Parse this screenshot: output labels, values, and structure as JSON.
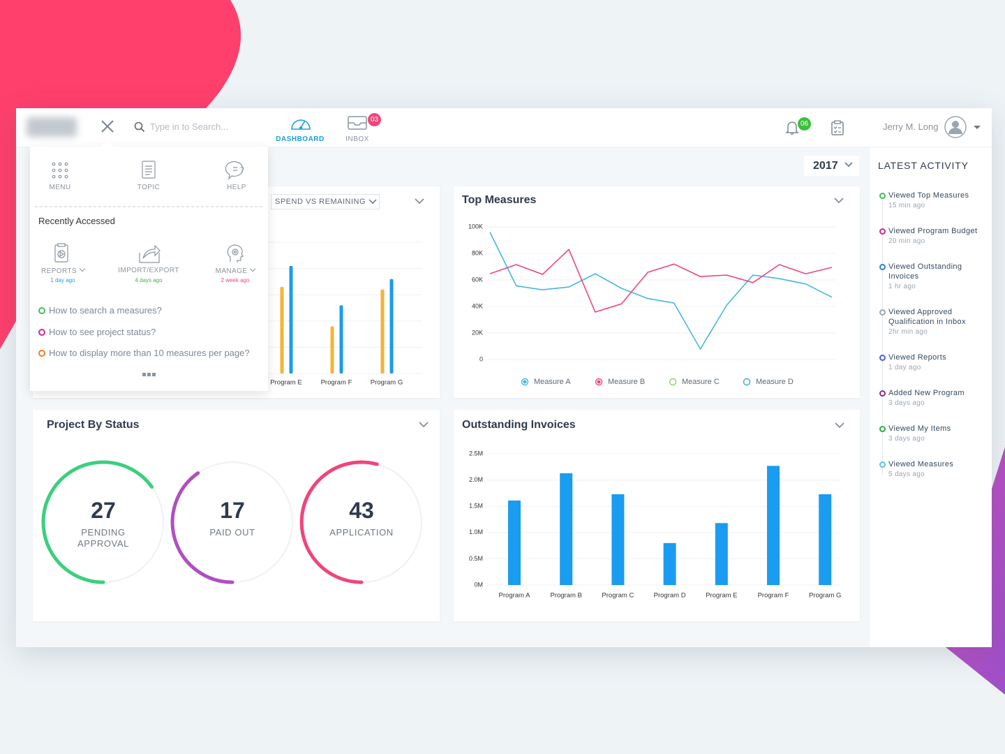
{
  "header": {
    "search_placeholder": "Type in to Search...",
    "nav": [
      {
        "label": "DASHBOARD"
      },
      {
        "label": "INBOX",
        "badge": "03"
      }
    ],
    "notification_badge": "06",
    "user_name": "Jerry M. Long"
  },
  "year_filter": "2017",
  "quick_menu": {
    "items": [
      "MENU",
      "TOPIC",
      "HELP"
    ],
    "recent_title": "Recently Accessed",
    "recent": [
      {
        "label": "REPORTS",
        "time": "1 day ago",
        "color": "#1a9cf0"
      },
      {
        "label": "IMPORT/EXPORT",
        "time": "4 days ago",
        "color": "#4caf50"
      },
      {
        "label": "MANAGE",
        "time": "2 week ago",
        "color": "#f0457a"
      }
    ],
    "questions": [
      {
        "text": "How to search a measures?",
        "color": "#3cbf5a"
      },
      {
        "text": "How to see project status?",
        "color": "#d2259a"
      },
      {
        "text": "How to display more than 10 measures per page?",
        "color": "#f07a2a"
      }
    ]
  },
  "project_status": {
    "title": "Project By Status",
    "items": [
      {
        "value": 27,
        "label": "PENDING APPROVAL"
      },
      {
        "value": 17,
        "label": "PAID OUT"
      },
      {
        "value": 43,
        "label": "APPLICATION"
      }
    ]
  },
  "latest_activity": {
    "title": "LATEST ACTIVITY",
    "items": [
      {
        "text": "Viewed Top Measures",
        "time": "15 min ago",
        "color": "#3cbf5a"
      },
      {
        "text": "Viewed Program Budget",
        "time": "20 min ago",
        "color": "#d2259a"
      },
      {
        "text": "Viewed Outstanding Invoices",
        "time": "1 hr ago",
        "color": "#2a7fd4"
      },
      {
        "text": "Viewed Approved Qualification in Inbox",
        "time": "2hr min ago",
        "color": "#9aa5b0"
      },
      {
        "text": "Viewed Reports",
        "time": "1 day ago",
        "color": "#4a5fd8"
      },
      {
        "text": "Added New Program",
        "time": "3 days ago",
        "color": "#8e2a8e"
      },
      {
        "text": "Viewed My Items",
        "time": "3 days ago",
        "color": "#2aa84a"
      },
      {
        "text": "Viewed Measures",
        "time": "5 days ago",
        "color": "#5bc0ea"
      }
    ]
  },
  "chart_data": [
    {
      "type": "bar",
      "subtitle": "SPEND VS REMAINING",
      "categories": [
        "Program E",
        "Program F",
        "Program G"
      ],
      "series": [
        {
          "color": "#f5b335",
          "values": [
            3.3,
            1.8,
            3.2
          ]
        },
        {
          "color": "#1a9cf0",
          "values": [
            4.1,
            2.6,
            3.6
          ]
        }
      ],
      "ylim": [
        0,
        5
      ]
    },
    {
      "type": "line",
      "title": "Top Measures",
      "categories": [
        null,
        null,
        null,
        null,
        null,
        null,
        null,
        null,
        null,
        null,
        null,
        null,
        null,
        null
      ],
      "series": [
        {
          "name": "Measure A",
          "color": "#45b5e6",
          "marker": "filled",
          "values": [
            96000,
            55600,
            52600,
            54700,
            64700,
            53700,
            46000,
            42600,
            7900,
            41000,
            63700,
            61000,
            57000,
            47000
          ]
        },
        {
          "name": "Measure B",
          "color": "#f0457a",
          "marker": "filled",
          "values": [
            64700,
            71600,
            64200,
            83000,
            35800,
            42000,
            65800,
            72000,
            62600,
            63700,
            58000,
            71600,
            64700,
            69500
          ]
        },
        {
          "name": "Measure C",
          "color": "#8bd16b",
          "marker": "hollow",
          "values": [
            null,
            null,
            null,
            null,
            null,
            null,
            null,
            null,
            null,
            null,
            null,
            null,
            null,
            null
          ]
        },
        {
          "name": "Measure D",
          "color": "#3aa8e8",
          "marker": "hollow",
          "values": [
            null,
            null,
            null,
            null,
            null,
            null,
            null,
            null,
            null,
            null,
            null,
            null,
            null,
            null
          ]
        }
      ],
      "ylim": [
        0,
        100000
      ],
      "yticks": [
        0,
        {
          "value": 20000,
          "label": "20K"
        },
        {
          "value": 40000,
          "label": "40K"
        },
        {
          "value": 60000,
          "label": "60K"
        },
        {
          "value": 80000,
          "label": "80K"
        },
        {
          "value": 100000,
          "label": "100K"
        }
      ],
      "grid": true
    },
    {
      "type": "bar",
      "title": "Outstanding Invoices",
      "categories": [
        "Program A",
        "Program B",
        "Program C",
        "Program D",
        "Program E",
        "Program F",
        "Program G"
      ],
      "values": [
        1610000,
        2130000,
        1730000,
        800000,
        1180000,
        2270000,
        1730000
      ],
      "color": "#1a9cf0",
      "ylim": [
        0,
        2500000
      ],
      "yticks": [
        {
          "value": 0,
          "label": "0M"
        },
        {
          "value": 500000,
          "label": "0.5M"
        },
        {
          "value": 1000000,
          "label": "1.0M"
        },
        {
          "value": 1500000,
          "label": "1.5M"
        },
        {
          "value": 2000000,
          "label": "2.0M"
        },
        {
          "value": 2500000,
          "label": "2.5M"
        }
      ],
      "grid": true
    }
  ]
}
